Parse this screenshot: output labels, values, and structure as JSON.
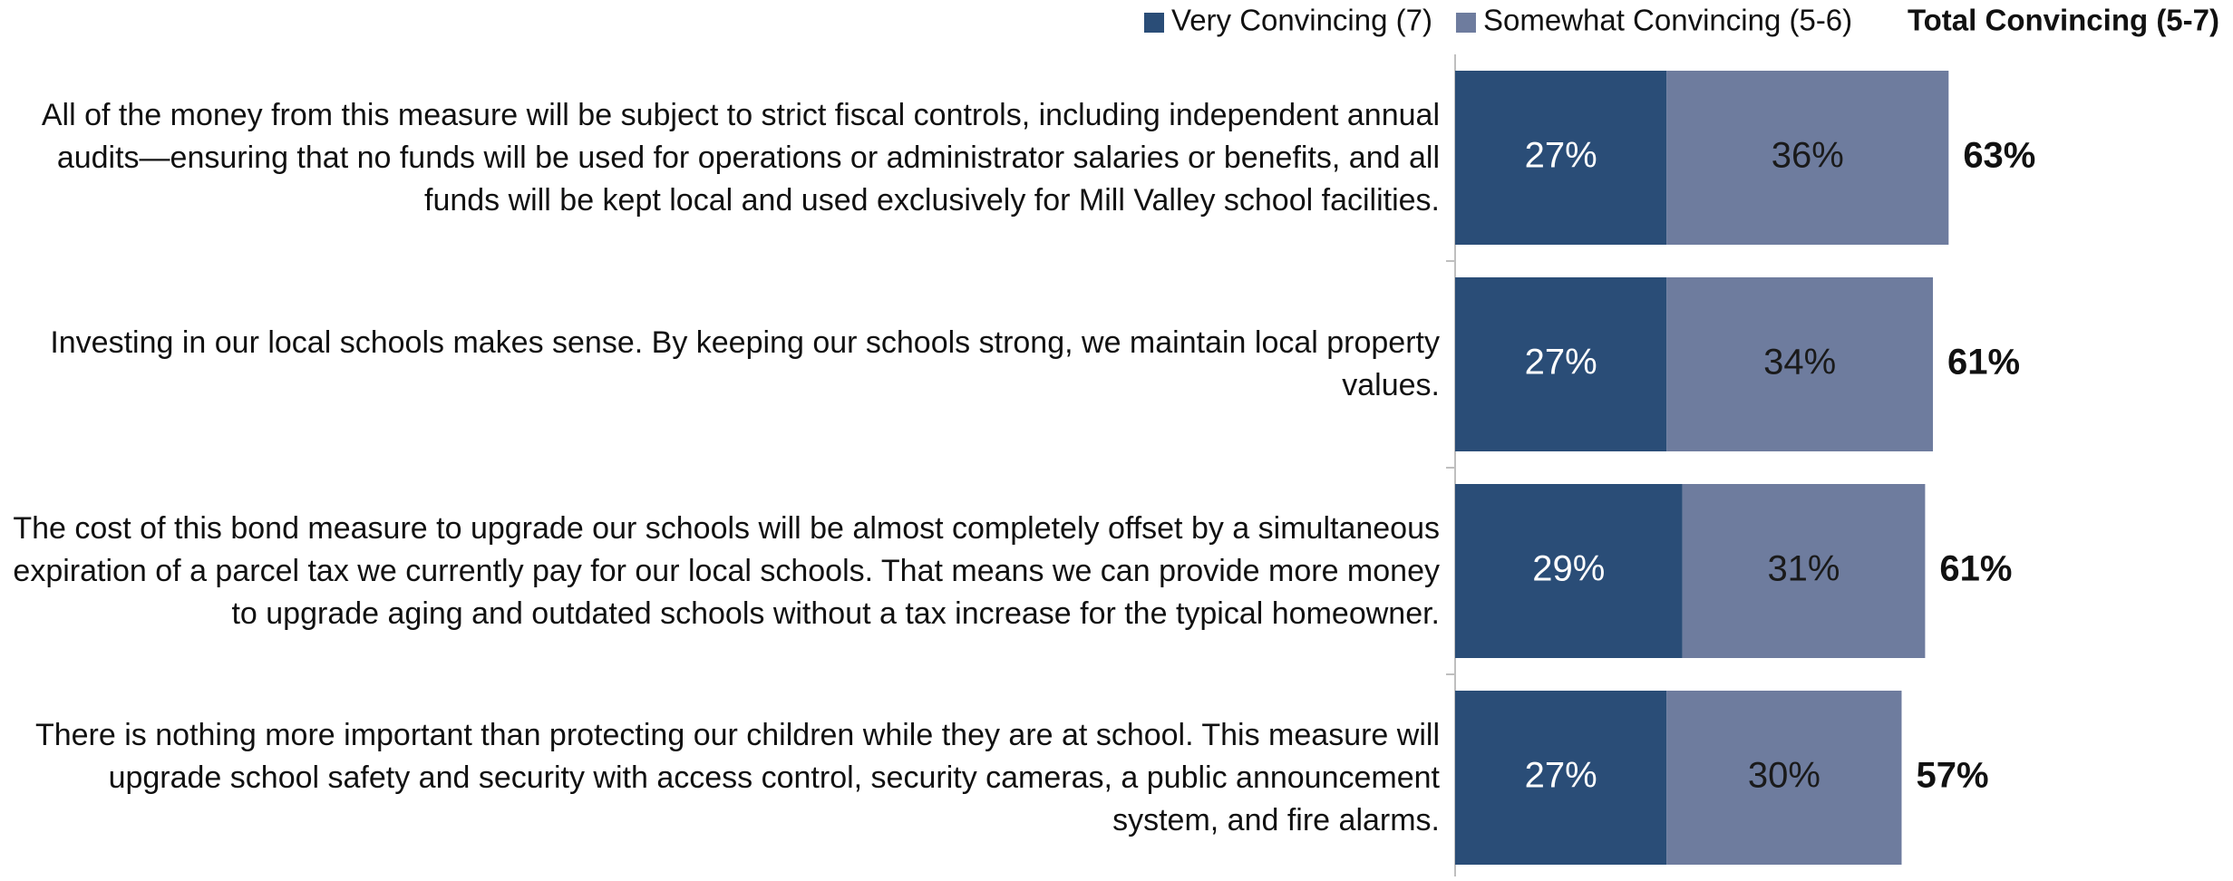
{
  "chart_data": {
    "type": "stacked-barh",
    "categories": [
      "All of the money from this measure will be subject to strict fiscal controls, including independent annual audits—ensuring that no funds will be used for operations or administrator salaries or benefits, and all funds will be kept local and used exclusively for Mill Valley school facilities.",
      "Investing in our local schools makes sense. By keeping our schools strong, we maintain local property values.",
      "The cost of this bond measure to upgrade our schools will be almost completely offset by a simultaneous expiration of a parcel tax we currently pay for our local schools. That means we can provide more money to upgrade aging and outdated schools without a tax increase for the typical homeowner.",
      "There is nothing more important than protecting our children while they are at school. This measure will upgrade school safety and security with access control, security cameras, a public announcement system, and fire alarms."
    ],
    "series": [
      {
        "name": "Very Convincing (7)",
        "color": "#2a4d77",
        "values": [
          27,
          27,
          29,
          27
        ],
        "value_labels": [
          "27%",
          "27%",
          "29%",
          "27%"
        ]
      },
      {
        "name": "Somewhat Convincing (5-6)",
        "color": "#6e7c9e",
        "values": [
          36,
          34,
          31,
          30
        ],
        "value_labels": [
          "36%",
          "34%",
          "31%",
          "30%"
        ]
      }
    ],
    "totals_name": "Total Convincing (5-7)",
    "totals": [
      63,
      61,
      61,
      57
    ],
    "totals_labels": [
      "63%",
      "61%",
      "61%",
      "57%"
    ],
    "xlim": [
      0,
      100
    ]
  }
}
